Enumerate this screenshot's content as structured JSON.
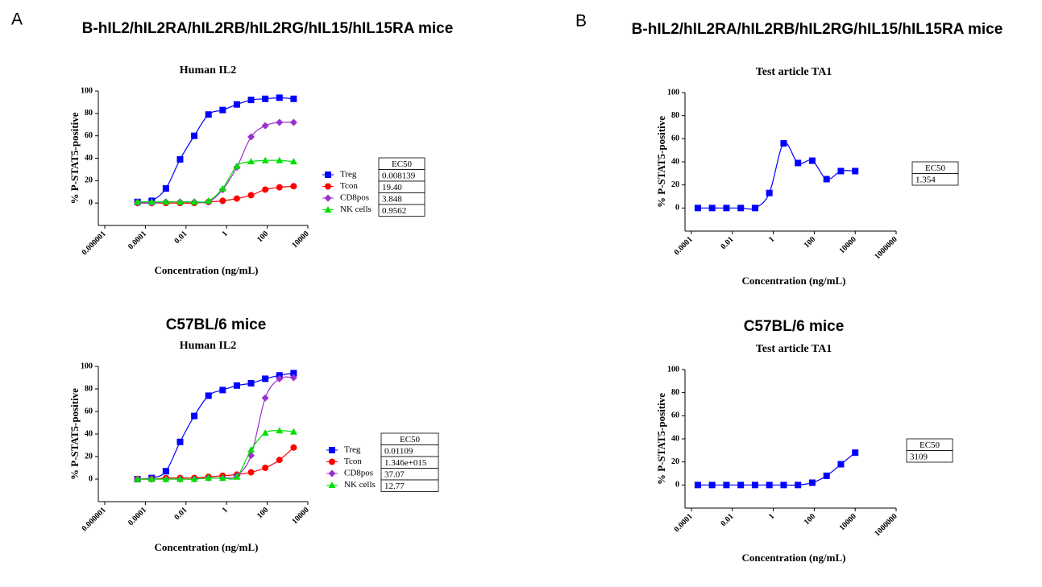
{
  "panels": [
    "A",
    "B"
  ],
  "chart_data": [
    {
      "type": "scatter",
      "heading": "B-hIL2/hIL2RA/hIL2RB/hIL2RG/hIL15/hIL15RA mice",
      "title": "Human IL2",
      "x_label": "Concentration (ng/mL)",
      "y_label": "% P-STAT5-positive",
      "log_x": true,
      "xlim": [
        1e-06,
        10000
      ],
      "xticks": [
        1e-06,
        0.0001,
        0.01,
        1,
        100,
        10000
      ],
      "ylim": [
        -20,
        100
      ],
      "yticks": [
        0,
        20,
        40,
        60,
        80,
        100
      ],
      "x": [
        4.096e-05,
        0.0002048,
        0.001024,
        0.00512,
        0.0256,
        0.128,
        0.64,
        3.2,
        16,
        80,
        400,
        2000
      ],
      "table_header": "EC50",
      "series": [
        {
          "name": "Treg",
          "color": "#0000ff",
          "marker": "square",
          "ec50": "0.008139",
          "values": [
            1,
            2,
            13,
            39,
            60,
            79,
            83,
            88,
            92,
            93,
            94,
            93
          ]
        },
        {
          "name": "Tcon",
          "color": "#ff0000",
          "marker": "circle",
          "ec50": "19.40",
          "values": [
            0,
            0,
            0,
            0,
            0,
            1,
            2,
            4,
            7,
            12,
            14,
            15
          ]
        },
        {
          "name": "CD8pos",
          "color": "#9b30d0",
          "marker": "diamond",
          "ec50": "3.848",
          "values": [
            0,
            0,
            1,
            1,
            1,
            1,
            12,
            32,
            59,
            69,
            72,
            72
          ]
        },
        {
          "name": "NK cells",
          "color": "#00e000",
          "marker": "triangle",
          "ec50": "0.9562",
          "values": [
            1,
            1,
            1,
            1,
            1,
            2,
            13,
            33,
            37,
            38,
            38,
            37
          ]
        }
      ]
    },
    {
      "type": "scatter",
      "heading": "C57BL/6 mice",
      "title": "Human IL2",
      "x_label": "Concentration (ng/mL)",
      "y_label": "% P-STAT5-positive",
      "log_x": true,
      "xlim": [
        1e-06,
        10000
      ],
      "xticks": [
        1e-06,
        0.0001,
        0.01,
        1,
        100,
        10000
      ],
      "ylim": [
        -20,
        100
      ],
      "yticks": [
        0,
        20,
        40,
        60,
        80,
        100
      ],
      "x": [
        4.096e-05,
        0.0002048,
        0.001024,
        0.00512,
        0.0256,
        0.128,
        0.64,
        3.2,
        16,
        80,
        400,
        2000
      ],
      "table_header": "EC50",
      "series": [
        {
          "name": "Treg",
          "color": "#0000ff",
          "marker": "square",
          "ec50": "0.01109",
          "values": [
            0,
            1,
            7,
            33,
            56,
            74,
            79,
            83,
            85,
            89,
            92,
            94
          ]
        },
        {
          "name": "Tcon",
          "color": "#ff0000",
          "marker": "circle",
          "ec50": "1.346e+015",
          "values": [
            0,
            0,
            1,
            1,
            1,
            2,
            3,
            4,
            6,
            10,
            17,
            28
          ]
        },
        {
          "name": "CD8pos",
          "color": "#9b30d0",
          "marker": "diamond",
          "ec50": "37.07",
          "values": [
            0,
            0,
            0,
            0,
            0,
            1,
            1,
            3,
            21,
            72,
            89,
            90
          ]
        },
        {
          "name": "NK cells",
          "color": "#00e000",
          "marker": "triangle",
          "ec50": "12.77",
          "values": [
            0,
            0,
            0,
            0,
            0,
            1,
            1,
            2,
            26,
            41,
            43,
            42
          ]
        }
      ]
    },
    {
      "type": "scatter",
      "heading": "B-hIL2/hIL2RA/hIL2RB/hIL2RG/hIL15/hIL15RA mice",
      "title": "Test article TA1",
      "x_label": "Concentration (ng/mL)",
      "y_label": "% P-STAT5-positive",
      "log_x": true,
      "xlim": [
        0.0001,
        1000000
      ],
      "xticks": [
        0.0001,
        0.01,
        1,
        100,
        10000,
        1000000
      ],
      "ylim": [
        -20,
        100
      ],
      "yticks": [
        0,
        20,
        40,
        60,
        80,
        100
      ],
      "x": [
        0.0002048,
        0.001024,
        0.00512,
        0.0256,
        0.128,
        0.64,
        3.2,
        16,
        80,
        400,
        2000,
        10000
      ],
      "table_header": "EC50",
      "series": [
        {
          "color": "#0000ff",
          "marker": "square",
          "ec50": "1.354",
          "values": [
            0,
            0,
            0,
            0,
            0,
            13,
            56,
            39,
            41,
            25,
            32,
            32
          ]
        }
      ]
    },
    {
      "type": "scatter",
      "heading": "C57BL/6 mice",
      "title": "Test article TA1",
      "x_label": "Concentration (ng/mL)",
      "y_label": "% P-STAT5-positive",
      "log_x": true,
      "xlim": [
        0.0001,
        1000000
      ],
      "xticks": [
        0.0001,
        0.01,
        1,
        100,
        10000,
        1000000
      ],
      "ylim": [
        -20,
        100
      ],
      "yticks": [
        0,
        20,
        40,
        60,
        80,
        100
      ],
      "x": [
        0.0002048,
        0.001024,
        0.00512,
        0.0256,
        0.128,
        0.64,
        3.2,
        16,
        80,
        400,
        2000,
        10000
      ],
      "table_header": "EC50",
      "series": [
        {
          "color": "#0000ff",
          "marker": "square",
          "ec50": "3109",
          "values": [
            0,
            0,
            0,
            0,
            0,
            0,
            0,
            0,
            2,
            8,
            18,
            28
          ]
        }
      ]
    }
  ]
}
